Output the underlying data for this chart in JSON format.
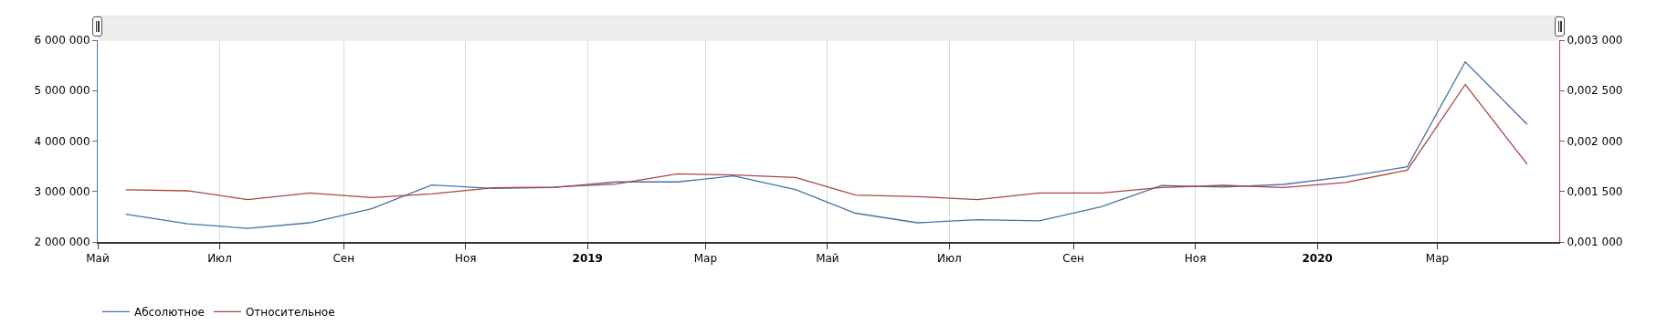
{
  "chart_data": {
    "type": "line",
    "x": [
      "2018-05-15",
      "2018-06-15",
      "2018-07-15",
      "2018-08-15",
      "2018-09-15",
      "2018-10-15",
      "2018-11-15",
      "2018-12-15",
      "2019-01-15",
      "2019-02-15",
      "2019-03-15",
      "2019-04-15",
      "2019-05-15",
      "2019-06-15",
      "2019-07-15",
      "2019-08-15",
      "2019-09-15",
      "2019-10-15",
      "2019-11-15",
      "2019-12-15",
      "2020-01-15",
      "2020-02-15",
      "2020-03-15",
      "2020-04-15"
    ],
    "series": [
      {
        "name": "Абсолютное",
        "color": "#4572a7",
        "values": [
          2550000,
          2360000,
          2270000,
          2380000,
          2660000,
          3130000,
          3060000,
          3080000,
          3190000,
          3190000,
          3310000,
          3040000,
          2570000,
          2380000,
          2440000,
          2420000,
          2700000,
          3120000,
          3090000,
          3140000,
          3290000,
          3490000,
          5570000,
          4330000
        ]
      },
      {
        "name": "Относительное",
        "color": "#aa4643",
        "axis": "y2",
        "values": [
          0.001517,
          0.001507,
          0.00142,
          0.001486,
          0.00144,
          0.001476,
          0.001538,
          0.001545,
          0.001573,
          0.001675,
          0.001664,
          0.00164,
          0.001465,
          0.00145,
          0.00142,
          0.001486,
          0.001486,
          0.00154,
          0.001561,
          0.00154,
          0.00159,
          0.001712,
          0.002561,
          0.00177
        ]
      }
    ],
    "xlim": [
      "2018-05-01",
      "2020-05-01"
    ],
    "xticks": [
      {
        "value": "2018-05-01",
        "label": "Май"
      },
      {
        "value": "2018-07-01",
        "label": "Июл"
      },
      {
        "value": "2018-09-01",
        "label": "Сен"
      },
      {
        "value": "2018-11-01",
        "label": "Ноя"
      },
      {
        "value": "2019-01-01",
        "label": "2019"
      },
      {
        "value": "2019-03-01",
        "label": "Мар"
      },
      {
        "value": "2019-05-01",
        "label": "Май"
      },
      {
        "value": "2019-07-01",
        "label": "Июл"
      },
      {
        "value": "2019-09-01",
        "label": "Сен"
      },
      {
        "value": "2019-11-01",
        "label": "Ноя"
      },
      {
        "value": "2020-01-01",
        "label": "2020"
      },
      {
        "value": "2020-03-01",
        "label": "Мар"
      }
    ],
    "ylim": [
      2000000,
      6000000
    ],
    "yticks": [
      {
        "value": 2000000,
        "label": "2 000 000"
      },
      {
        "value": 3000000,
        "label": "3 000 000"
      },
      {
        "value": 4000000,
        "label": "4 000 000"
      },
      {
        "value": 5000000,
        "label": "5 000 000"
      },
      {
        "value": 6000000,
        "label": "6 000 000"
      }
    ],
    "y2lim": [
      0.001,
      0.003
    ],
    "y2ticks": [
      {
        "value": 0.001,
        "label": "0,001 000"
      },
      {
        "value": 0.0015,
        "label": "0,001 500"
      },
      {
        "value": 0.002,
        "label": "0,002 000"
      },
      {
        "value": 0.0025,
        "label": "0,002 500"
      },
      {
        "value": 0.003,
        "label": "0,003 000"
      }
    ],
    "grid": "x",
    "legend": "bottom left",
    "marker": "none",
    "line_style": "solid"
  }
}
